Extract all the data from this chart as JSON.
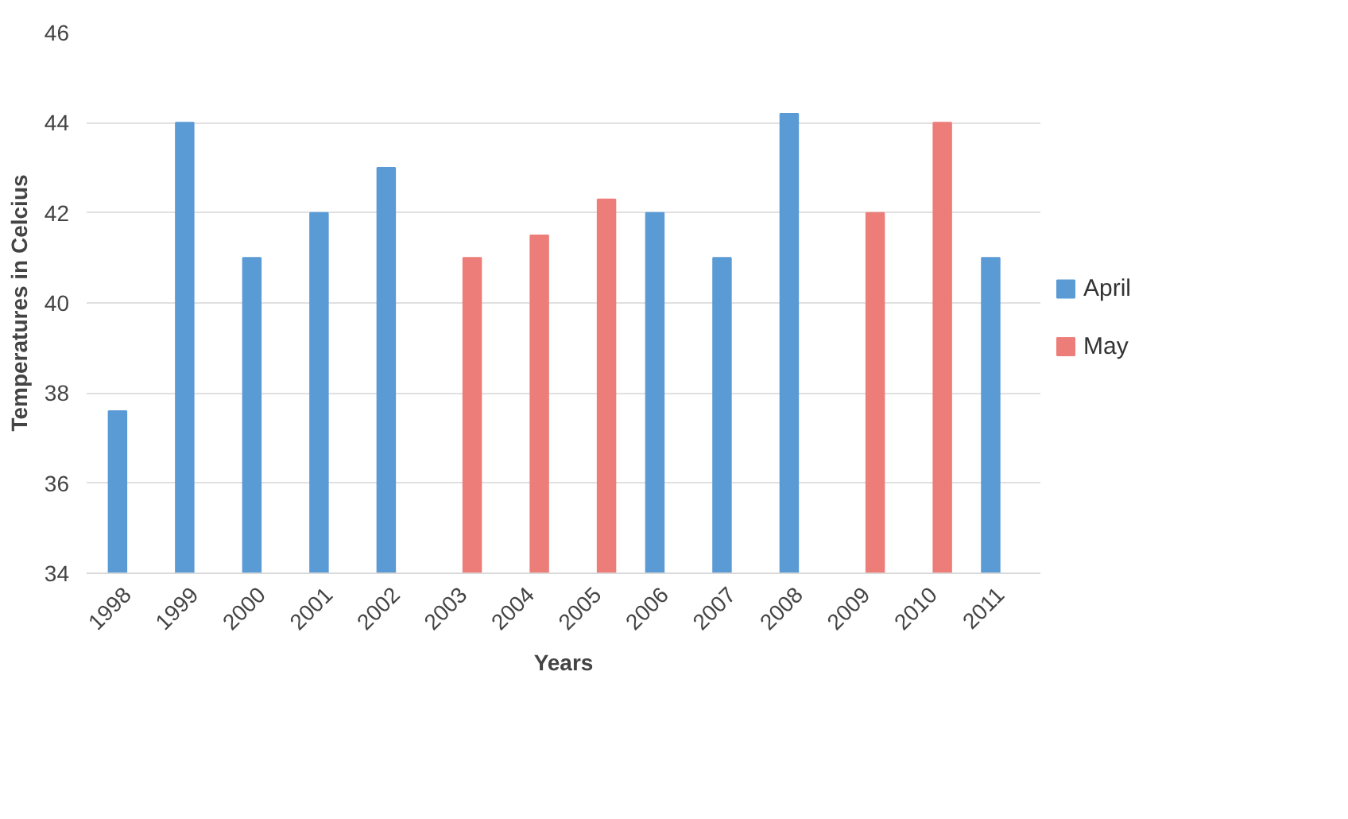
{
  "chart_data": {
    "type": "bar",
    "xlabel": "Years",
    "ylabel": "Temperatures in Celcius",
    "categories": [
      "1998",
      "1999",
      "2000",
      "2001",
      "2002",
      "2003",
      "2004",
      "2005",
      "2006",
      "2007",
      "2008",
      "2009",
      "2010",
      "2011"
    ],
    "series": [
      {
        "name": "April",
        "color": "#5b9bd5",
        "values": [
          37.6,
          44,
          41,
          42,
          43,
          null,
          null,
          null,
          42,
          41,
          44.2,
          null,
          null,
          41
        ]
      },
      {
        "name": "May",
        "color": "#ed7d78",
        "values": [
          null,
          null,
          null,
          null,
          null,
          41,
          41.5,
          42.3,
          null,
          null,
          null,
          42,
          44,
          null
        ]
      }
    ],
    "ylim": [
      34,
      46
    ],
    "yticks": [
      34,
      36,
      38,
      40,
      42,
      44,
      46
    ],
    "grid": "y",
    "legend": "right"
  }
}
